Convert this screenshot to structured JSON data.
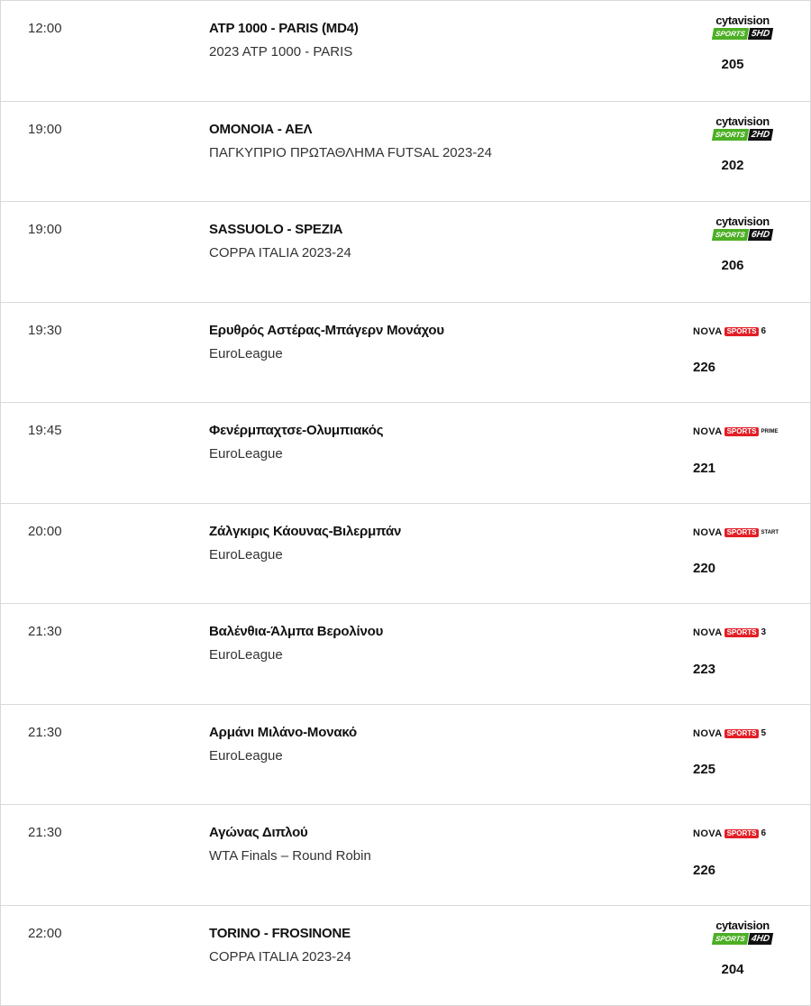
{
  "events": [
    {
      "time": "12:00",
      "title": "ATP 1000 - PARIS (MD4)",
      "subtitle": "2023 ATP 1000 - PARIS",
      "channel_number": "205",
      "logo": {
        "brand": "cytavision",
        "label": "SPORTS",
        "suffix": "5HD"
      }
    },
    {
      "time": "19:00",
      "title": "ΟΜΟΝΟΙΑ - ΑΕΛ",
      "subtitle": "ΠΑΓΚΥΠΡΙΟ ΠΡΩΤΑΘΛΗΜΑ FUTSAL 2023-24",
      "channel_number": "202",
      "logo": {
        "brand": "cytavision",
        "label": "SPORTS",
        "suffix": "2HD"
      }
    },
    {
      "time": "19:00",
      "title": "SASSUOLO - SPEZIA",
      "subtitle": "COPPA ITALIA 2023-24",
      "channel_number": "206",
      "logo": {
        "brand": "cytavision",
        "label": "SPORTS",
        "suffix": "6HD"
      }
    },
    {
      "time": "19:30",
      "title": "Ερυθρός Αστέρας-Μπάγερν Μονάχου",
      "subtitle": "EuroLeague",
      "channel_number": "226",
      "logo": {
        "brand": "NOVA",
        "label": "SPORTS",
        "suffix": "6"
      }
    },
    {
      "time": "19:45",
      "title": "Φενέρμπαχτσε-Ολυμπιακός",
      "subtitle": "EuroLeague",
      "channel_number": "221",
      "logo": {
        "brand": "NOVA",
        "label": "SPORTS",
        "suffix": "PRIME"
      }
    },
    {
      "time": "20:00",
      "title": "Ζάλγκιρις Κάουνας-Βιλερμπάν",
      "subtitle": "EuroLeague",
      "channel_number": "220",
      "logo": {
        "brand": "NOVA",
        "label": "SPORTS",
        "suffix": "START"
      }
    },
    {
      "time": "21:30",
      "title": "Βαλένθια-Άλμπα Βερολίνου",
      "subtitle": "EuroLeague",
      "channel_number": "223",
      "logo": {
        "brand": "NOVA",
        "label": "SPORTS",
        "suffix": "3"
      }
    },
    {
      "time": "21:30",
      "title": "Αρμάνι Μιλάνο-Μονακό",
      "subtitle": "EuroLeague",
      "channel_number": "225",
      "logo": {
        "brand": "NOVA",
        "label": "SPORTS",
        "suffix": "5"
      }
    },
    {
      "time": "21:30",
      "title": "Αγώνας Διπλού",
      "subtitle": "WTA Finals – Round Robin",
      "channel_number": "226",
      "logo": {
        "brand": "NOVA",
        "label": "SPORTS",
        "suffix": "6"
      }
    },
    {
      "time": "22:00",
      "title": "TORINO - FROSINONE",
      "subtitle": "COPPA ITALIA 2023-24",
      "channel_number": "204",
      "logo": {
        "brand": "cytavision",
        "label": "SPORTS",
        "suffix": "4HD"
      }
    }
  ],
  "colors": {
    "cyta_green": "#4caf24",
    "nova_red": "#e31e26",
    "divider": "#d9d9d9"
  }
}
